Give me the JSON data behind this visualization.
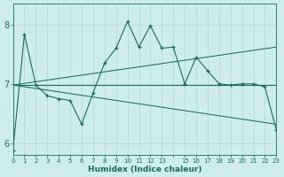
{
  "xlabel": "Humidex (Indice chaleur)",
  "xlim": [
    0,
    23
  ],
  "ylim": [
    5.8,
    8.35
  ],
  "yticks": [
    6,
    7,
    8
  ],
  "xtick_labels": [
    "0",
    "1",
    "2",
    "3",
    "4",
    "5",
    "6",
    "7",
    "8",
    "9",
    "10",
    "11",
    "12",
    "13",
    "",
    "15",
    "16",
    "17",
    "18",
    "19",
    "20",
    "21",
    "22",
    "23"
  ],
  "bg_color": "#ceecea",
  "line_color": "#1a6b5e",
  "grid_color": "#b0d8d4",
  "main_x": [
    0,
    1,
    2,
    3,
    4,
    5,
    6,
    7,
    8,
    9,
    10,
    11,
    12,
    13,
    14,
    15,
    16,
    17,
    18,
    19,
    20,
    21,
    22,
    23
  ],
  "main_y": [
    5.88,
    7.83,
    6.98,
    6.8,
    6.75,
    6.72,
    6.32,
    6.85,
    7.35,
    7.6,
    8.05,
    7.62,
    7.98,
    7.6,
    7.62,
    7.0,
    7.45,
    7.22,
    7.0,
    6.98,
    7.0,
    7.0,
    6.95,
    6.22
  ],
  "trend1_x": [
    0,
    23
  ],
  "trend1_y": [
    6.98,
    6.98
  ],
  "trend2_x": [
    0,
    23
  ],
  "trend2_y": [
    6.98,
    6.32
  ],
  "trend3_x": [
    0,
    23
  ],
  "trend3_y": [
    6.98,
    7.62
  ]
}
